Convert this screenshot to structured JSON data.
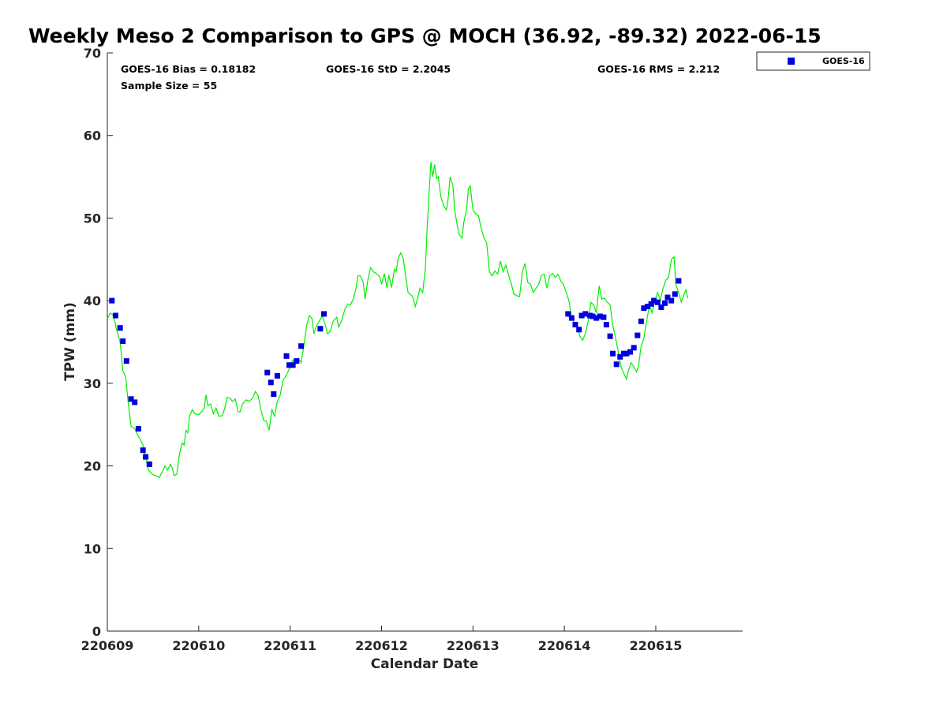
{
  "chart_data": {
    "type": "line",
    "title": "Weekly Meso 2 Comparison to GPS @ MOCH (36.92, -89.32) 2022-06-15",
    "xlabel": "Calendar Date",
    "ylabel": "TPW (mm)",
    "x_units": "days since 220609 (Calendar Date axis)",
    "xlim": [
      0,
      6.95
    ],
    "ylim": [
      0,
      70
    ],
    "x_ticks": [
      0,
      1,
      2,
      3,
      4,
      5,
      6
    ],
    "x_tick_labels": [
      "220609",
      "220610",
      "220611",
      "220612",
      "220613",
      "220614",
      "220615"
    ],
    "y_ticks": [
      0,
      10,
      20,
      30,
      40,
      50,
      60,
      70
    ],
    "y_tick_labels": [
      "0",
      "10",
      "20",
      "30",
      "40",
      "50",
      "60",
      "70"
    ],
    "grid": false,
    "legend_position": "top-right, outside plot",
    "stats": {
      "bias": "GOES-16 Bias = 0.18182",
      "std": "GOES-16 StD = 2.2045",
      "rms": "GOES-16 RMS = 2.212",
      "sample": "Sample Size = 55"
    },
    "series": [
      {
        "name": "GPS",
        "kind": "line",
        "color": "#00ee00",
        "points": [
          [
            0.0,
            37.8
          ],
          [
            0.03,
            38.5
          ],
          [
            0.07,
            38.2
          ],
          [
            0.1,
            36.5
          ],
          [
            0.14,
            35.0
          ],
          [
            0.17,
            31.5
          ],
          [
            0.2,
            30.8
          ],
          [
            0.23,
            27.5
          ],
          [
            0.26,
            24.8
          ],
          [
            0.3,
            24.5
          ],
          [
            0.33,
            23.8
          ],
          [
            0.36,
            23.2
          ],
          [
            0.39,
            22.5
          ],
          [
            0.42,
            21.0
          ],
          [
            0.45,
            19.5
          ],
          [
            0.49,
            19.0
          ],
          [
            0.53,
            18.8
          ],
          [
            0.57,
            18.6
          ],
          [
            0.61,
            19.5
          ],
          [
            0.63,
            20.0
          ],
          [
            0.66,
            19.5
          ],
          [
            0.69,
            20.2
          ],
          [
            0.71,
            19.8
          ],
          [
            0.73,
            18.8
          ],
          [
            0.76,
            19.0
          ],
          [
            0.79,
            21.5
          ],
          [
            0.82,
            22.8
          ],
          [
            0.84,
            22.5
          ],
          [
            0.86,
            24.3
          ],
          [
            0.88,
            24.0
          ],
          [
            0.9,
            26.0
          ],
          [
            0.93,
            26.8
          ],
          [
            0.96,
            26.3
          ],
          [
            1.0,
            26.2
          ],
          [
            1.03,
            26.5
          ],
          [
            1.06,
            27.0
          ],
          [
            1.08,
            28.6
          ],
          [
            1.1,
            27.3
          ],
          [
            1.13,
            27.5
          ],
          [
            1.16,
            26.3
          ],
          [
            1.19,
            27.0
          ],
          [
            1.22,
            26.0
          ],
          [
            1.26,
            26.1
          ],
          [
            1.29,
            27.2
          ],
          [
            1.31,
            28.3
          ],
          [
            1.34,
            28.2
          ],
          [
            1.37,
            27.8
          ],
          [
            1.4,
            28.1
          ],
          [
            1.43,
            26.6
          ],
          [
            1.45,
            26.5
          ],
          [
            1.48,
            27.5
          ],
          [
            1.52,
            28.0
          ],
          [
            1.55,
            27.8
          ],
          [
            1.59,
            28.2
          ],
          [
            1.62,
            29.0
          ],
          [
            1.65,
            28.5
          ],
          [
            1.68,
            26.8
          ],
          [
            1.71,
            25.5
          ],
          [
            1.74,
            25.4
          ],
          [
            1.77,
            24.3
          ],
          [
            1.8,
            26.8
          ],
          [
            1.83,
            26.0
          ],
          [
            1.86,
            27.8
          ],
          [
            1.89,
            28.5
          ],
          [
            1.92,
            30.3
          ],
          [
            1.96,
            31.0
          ],
          [
            2.0,
            32.0
          ],
          [
            2.03,
            32.8
          ],
          [
            2.06,
            32.3
          ],
          [
            2.09,
            33.0
          ],
          [
            2.12,
            32.5
          ],
          [
            2.15,
            34.5
          ],
          [
            2.18,
            37.0
          ],
          [
            2.21,
            38.2
          ],
          [
            2.24,
            37.8
          ],
          [
            2.26,
            36.0
          ],
          [
            2.29,
            37.0
          ],
          [
            2.32,
            37.5
          ],
          [
            2.35,
            38.2
          ],
          [
            2.38,
            37.2
          ],
          [
            2.41,
            36.0
          ],
          [
            2.44,
            36.3
          ],
          [
            2.47,
            37.5
          ],
          [
            2.51,
            38.0
          ],
          [
            2.53,
            36.8
          ],
          [
            2.56,
            37.5
          ],
          [
            2.6,
            39.0
          ],
          [
            2.63,
            39.6
          ],
          [
            2.66,
            39.5
          ],
          [
            2.69,
            40.2
          ],
          [
            2.72,
            41.5
          ],
          [
            2.74,
            43.0
          ],
          [
            2.77,
            43.0
          ],
          [
            2.8,
            42.2
          ],
          [
            2.82,
            40.2
          ],
          [
            2.85,
            42.5
          ],
          [
            2.88,
            44.0
          ],
          [
            2.91,
            43.5
          ],
          [
            2.94,
            43.3
          ],
          [
            2.98,
            42.9
          ],
          [
            3.0,
            42.0
          ],
          [
            3.03,
            43.3
          ],
          [
            3.06,
            41.5
          ],
          [
            3.08,
            43.1
          ],
          [
            3.11,
            41.6
          ],
          [
            3.14,
            43.8
          ],
          [
            3.16,
            43.5
          ],
          [
            3.18,
            45.0
          ],
          [
            3.21,
            45.8
          ],
          [
            3.24,
            45.0
          ],
          [
            3.26,
            43.2
          ],
          [
            3.29,
            41.0
          ],
          [
            3.31,
            40.8
          ],
          [
            3.34,
            40.5
          ],
          [
            3.37,
            39.3
          ],
          [
            3.4,
            40.5
          ],
          [
            3.42,
            41.5
          ],
          [
            3.45,
            41.0
          ],
          [
            3.48,
            44.0
          ],
          [
            3.5,
            49.0
          ],
          [
            3.52,
            53.0
          ],
          [
            3.54,
            56.8
          ],
          [
            3.56,
            55.0
          ],
          [
            3.58,
            56.5
          ],
          [
            3.6,
            54.8
          ],
          [
            3.62,
            55.0
          ],
          [
            3.65,
            52.5
          ],
          [
            3.68,
            51.5
          ],
          [
            3.71,
            51.0
          ],
          [
            3.73,
            52.5
          ],
          [
            3.75,
            55.0
          ],
          [
            3.78,
            54.0
          ],
          [
            3.8,
            51.0
          ],
          [
            3.83,
            49.0
          ],
          [
            3.85,
            48.0
          ],
          [
            3.88,
            47.6
          ],
          [
            3.9,
            49.5
          ],
          [
            3.93,
            51.0
          ],
          [
            3.95,
            53.5
          ],
          [
            3.97,
            53.9
          ],
          [
            4.0,
            51.0
          ],
          [
            4.03,
            50.5
          ],
          [
            4.06,
            50.3
          ],
          [
            4.09,
            48.8
          ],
          [
            4.12,
            47.6
          ],
          [
            4.15,
            47.0
          ],
          [
            4.18,
            43.5
          ],
          [
            4.21,
            43.0
          ],
          [
            4.24,
            43.6
          ],
          [
            4.27,
            43.2
          ],
          [
            4.3,
            44.8
          ],
          [
            4.33,
            43.5
          ],
          [
            4.36,
            44.3
          ],
          [
            4.39,
            43.1
          ],
          [
            4.42,
            42.0
          ],
          [
            4.45,
            40.8
          ],
          [
            4.48,
            40.6
          ],
          [
            4.51,
            40.5
          ],
          [
            4.54,
            43.5
          ],
          [
            4.57,
            44.5
          ],
          [
            4.6,
            42.2
          ],
          [
            4.63,
            42.0
          ],
          [
            4.66,
            41.0
          ],
          [
            4.69,
            41.5
          ],
          [
            4.72,
            42.0
          ],
          [
            4.75,
            43.1
          ],
          [
            4.78,
            43.2
          ],
          [
            4.81,
            41.5
          ],
          [
            4.84,
            43.0
          ],
          [
            4.87,
            43.3
          ],
          [
            4.9,
            42.8
          ],
          [
            4.93,
            43.2
          ],
          [
            4.96,
            42.4
          ],
          [
            4.99,
            42.0
          ],
          [
            5.02,
            41.0
          ],
          [
            5.05,
            40.0
          ],
          [
            5.08,
            38.0
          ],
          [
            5.11,
            37.2
          ],
          [
            5.14,
            36.8
          ],
          [
            5.17,
            35.7
          ],
          [
            5.2,
            35.2
          ],
          [
            5.23,
            36.0
          ],
          [
            5.26,
            37.5
          ],
          [
            5.29,
            39.8
          ],
          [
            5.32,
            39.5
          ],
          [
            5.35,
            38.5
          ],
          [
            5.38,
            41.8
          ],
          [
            5.41,
            40.2
          ],
          [
            5.44,
            40.3
          ],
          [
            5.47,
            39.8
          ],
          [
            5.5,
            39.5
          ],
          [
            5.53,
            37.0
          ],
          [
            5.56,
            35.5
          ],
          [
            5.59,
            33.8
          ],
          [
            5.62,
            32.0
          ],
          [
            5.65,
            31.2
          ],
          [
            5.68,
            30.5
          ],
          [
            5.7,
            31.5
          ],
          [
            5.73,
            32.5
          ],
          [
            5.76,
            32.0
          ],
          [
            5.79,
            31.4
          ],
          [
            5.81,
            32.0
          ],
          [
            5.84,
            34.5
          ],
          [
            5.87,
            35.5
          ],
          [
            5.9,
            37.5
          ],
          [
            5.93,
            39.5
          ],
          [
            5.96,
            38.5
          ],
          [
            5.99,
            40.0
          ],
          [
            6.02,
            41.0
          ],
          [
            6.05,
            40.0
          ],
          [
            6.08,
            41.5
          ],
          [
            6.11,
            42.5
          ],
          [
            6.14,
            42.8
          ],
          [
            6.17,
            45.0
          ],
          [
            6.2,
            45.3
          ],
          [
            6.22,
            42.0
          ],
          [
            6.25,
            41.0
          ],
          [
            6.28,
            39.8
          ],
          [
            6.3,
            40.5
          ],
          [
            6.33,
            41.3
          ],
          [
            6.35,
            40.3
          ]
        ]
      },
      {
        "name": "GOES-16",
        "kind": "markers",
        "color": "#0000dd",
        "points": [
          [
            0.05,
            40.0
          ],
          [
            0.09,
            38.2
          ],
          [
            0.14,
            36.7
          ],
          [
            0.17,
            35.1
          ],
          [
            0.21,
            32.7
          ],
          [
            0.26,
            28.1
          ],
          [
            0.3,
            27.7
          ],
          [
            0.34,
            24.5
          ],
          [
            0.39,
            21.9
          ],
          [
            0.42,
            21.1
          ],
          [
            0.46,
            20.2
          ],
          [
            1.75,
            31.3
          ],
          [
            1.79,
            30.1
          ],
          [
            1.82,
            28.7
          ],
          [
            1.86,
            30.9
          ],
          [
            1.96,
            33.3
          ],
          [
            1.99,
            32.2
          ],
          [
            2.03,
            32.2
          ],
          [
            2.07,
            32.7
          ],
          [
            2.12,
            34.5
          ],
          [
            2.33,
            36.6
          ],
          [
            2.37,
            38.4
          ],
          [
            5.04,
            38.4
          ],
          [
            5.08,
            37.9
          ],
          [
            5.12,
            37.1
          ],
          [
            5.16,
            36.5
          ],
          [
            5.19,
            38.2
          ],
          [
            5.23,
            38.4
          ],
          [
            5.28,
            38.2
          ],
          [
            5.31,
            38.1
          ],
          [
            5.35,
            37.9
          ],
          [
            5.39,
            38.1
          ],
          [
            5.43,
            38.0
          ],
          [
            5.46,
            37.1
          ],
          [
            5.5,
            35.7
          ],
          [
            5.53,
            33.6
          ],
          [
            5.57,
            32.3
          ],
          [
            5.61,
            33.2
          ],
          [
            5.65,
            33.6
          ],
          [
            5.68,
            33.6
          ],
          [
            5.72,
            33.8
          ],
          [
            5.76,
            34.3
          ],
          [
            5.8,
            35.8
          ],
          [
            5.84,
            37.5
          ],
          [
            5.87,
            39.1
          ],
          [
            5.91,
            39.3
          ],
          [
            5.95,
            39.6
          ],
          [
            5.98,
            40.0
          ],
          [
            6.02,
            39.8
          ],
          [
            6.06,
            39.2
          ],
          [
            6.1,
            39.7
          ],
          [
            6.13,
            40.4
          ],
          [
            6.17,
            40.0
          ],
          [
            6.21,
            40.8
          ],
          [
            6.25,
            42.4
          ]
        ]
      }
    ],
    "legend": [
      {
        "label": "GOES-16",
        "color": "#0000dd",
        "marker": "square"
      }
    ]
  }
}
